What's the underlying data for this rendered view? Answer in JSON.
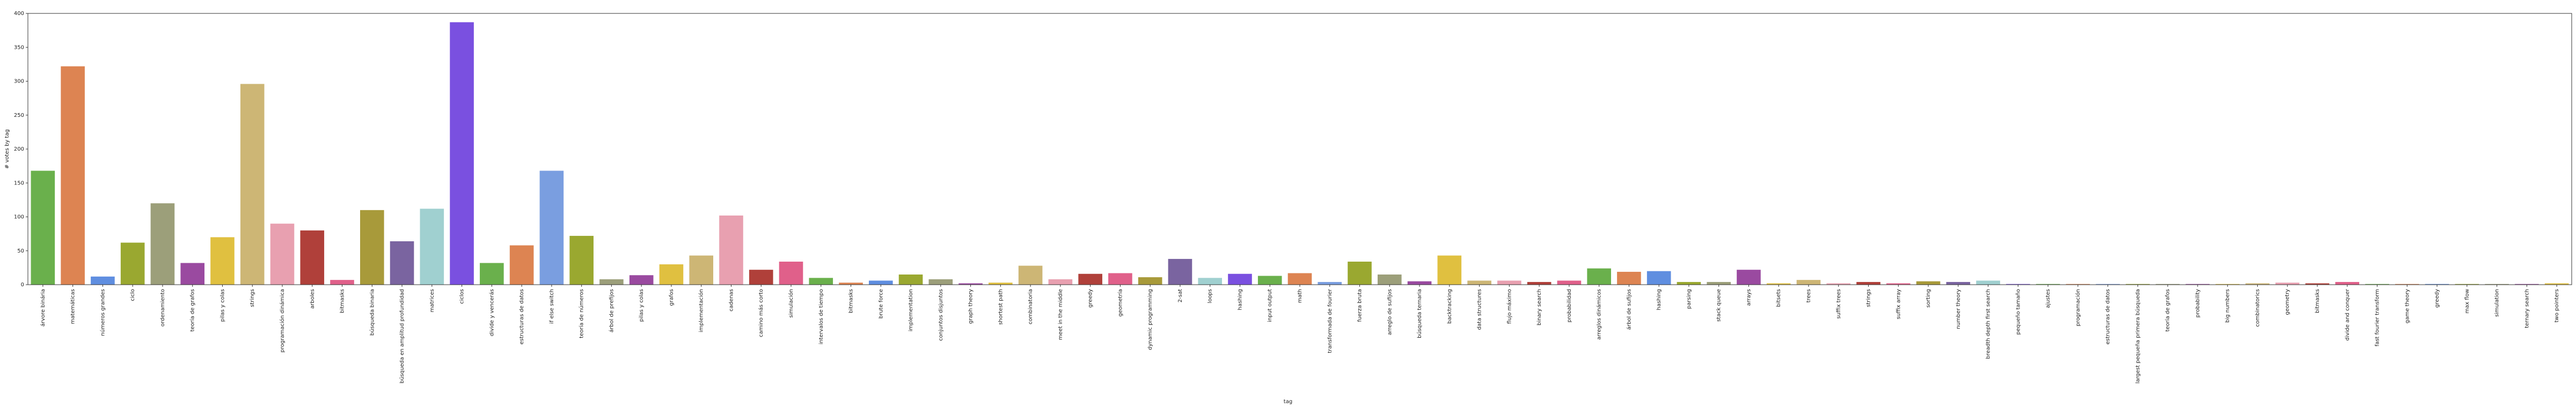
{
  "chart_data": {
    "type": "bar",
    "xlabel": "tag",
    "ylabel": "# votes by tag",
    "categories": [
      "árvore binária",
      "matemáticas",
      "números grandes",
      "ciclo",
      "ordenamiento",
      "teoría de grafos",
      "pilas y colas",
      "strings",
      "programación dinámica",
      "arboles",
      "bitmasks",
      "búsqueda binaria",
      "búsqueda en amplitud profundidad",
      "matrices",
      "ciclos",
      "divide y vencerás",
      "estructuras de datos",
      "if else switch",
      "teoría de números",
      "árbol de prefijos",
      "pilas y colas",
      "grafos",
      "implementación",
      "cadenas",
      "camino más corto",
      "simulación",
      "intervalos de tiempo",
      "bitmasks",
      "brute force",
      "implementation",
      "conjuntos disjuntos",
      "graph theory",
      "shortest path",
      "combinatoria",
      "meet in the middle",
      "greedy",
      "geometría",
      "dynamic programming",
      "2-sat",
      "loops",
      "hashing",
      "input output",
      "math",
      "transformada de fourier",
      "fuerza bruta",
      "arreglo de sufijos",
      "búsqueda ternaria",
      "backtracking",
      "data structures",
      "flujo máximo",
      "binary search",
      "probabilidad",
      "arreglos dinámicos",
      "árbol de sufijos",
      "hashing",
      "parsing",
      "stack queue",
      "arrays",
      "bitsets",
      "trees",
      "suffix trees",
      "strings",
      "suffix array",
      "sorting",
      "number theory",
      "breadth depth first search",
      "pequeño tamaño",
      "ajustes",
      "programación",
      "estructuras de datos",
      "largest pequeña primera búsqueda",
      "teoría de grafos",
      "probability",
      "big numbers",
      "combinatorics",
      "geometry",
      "bitmasks",
      "divide and conquer",
      "fast fourier transform",
      "game theory",
      "greedy",
      "max flow",
      "simulation",
      "ternary search",
      "two pointers"
    ],
    "values": [
      168,
      322,
      12,
      62,
      120,
      32,
      70,
      296,
      90,
      80,
      7,
      110,
      64,
      112,
      387,
      32,
      58,
      168,
      72,
      8,
      14,
      30,
      43,
      102,
      22,
      34,
      10,
      3,
      6,
      15,
      8,
      2,
      3,
      28,
      8,
      16,
      17,
      11,
      38,
      10,
      16,
      13,
      17,
      4,
      34,
      15,
      5,
      43,
      6,
      6,
      4,
      6,
      24,
      19,
      20,
      4,
      4,
      22,
      2,
      7,
      2,
      4,
      2,
      5,
      4,
      6,
      1,
      1,
      1,
      1,
      1,
      1,
      1,
      1,
      2,
      3,
      2,
      4,
      1,
      1,
      1,
      1,
      1,
      1,
      2
    ],
    "palette": [
      "#6ab04c",
      "#dd8452",
      "#5f8ee0",
      "#9aa830",
      "#9c9f7a",
      "#9a4aa0",
      "#e0c040",
      "#cdb675",
      "#e8a0b0",
      "#b0403a",
      "#e0608a",
      "#a89a3a",
      "#7a64a0",
      "#a0d0d0",
      "#7a50e0",
      "#6ab04c",
      "#dd8452",
      "#7a9ee0",
      "#9aa830",
      "#9c9f7a",
      "#9a4aa0",
      "#e0c040",
      "#cdb675",
      "#e8a0b0",
      "#b0403a",
      "#e0608a"
    ],
    "ylim": [
      0,
      400
    ],
    "yticks": [
      0,
      50,
      100,
      150,
      200,
      250,
      300,
      350,
      400
    ]
  }
}
